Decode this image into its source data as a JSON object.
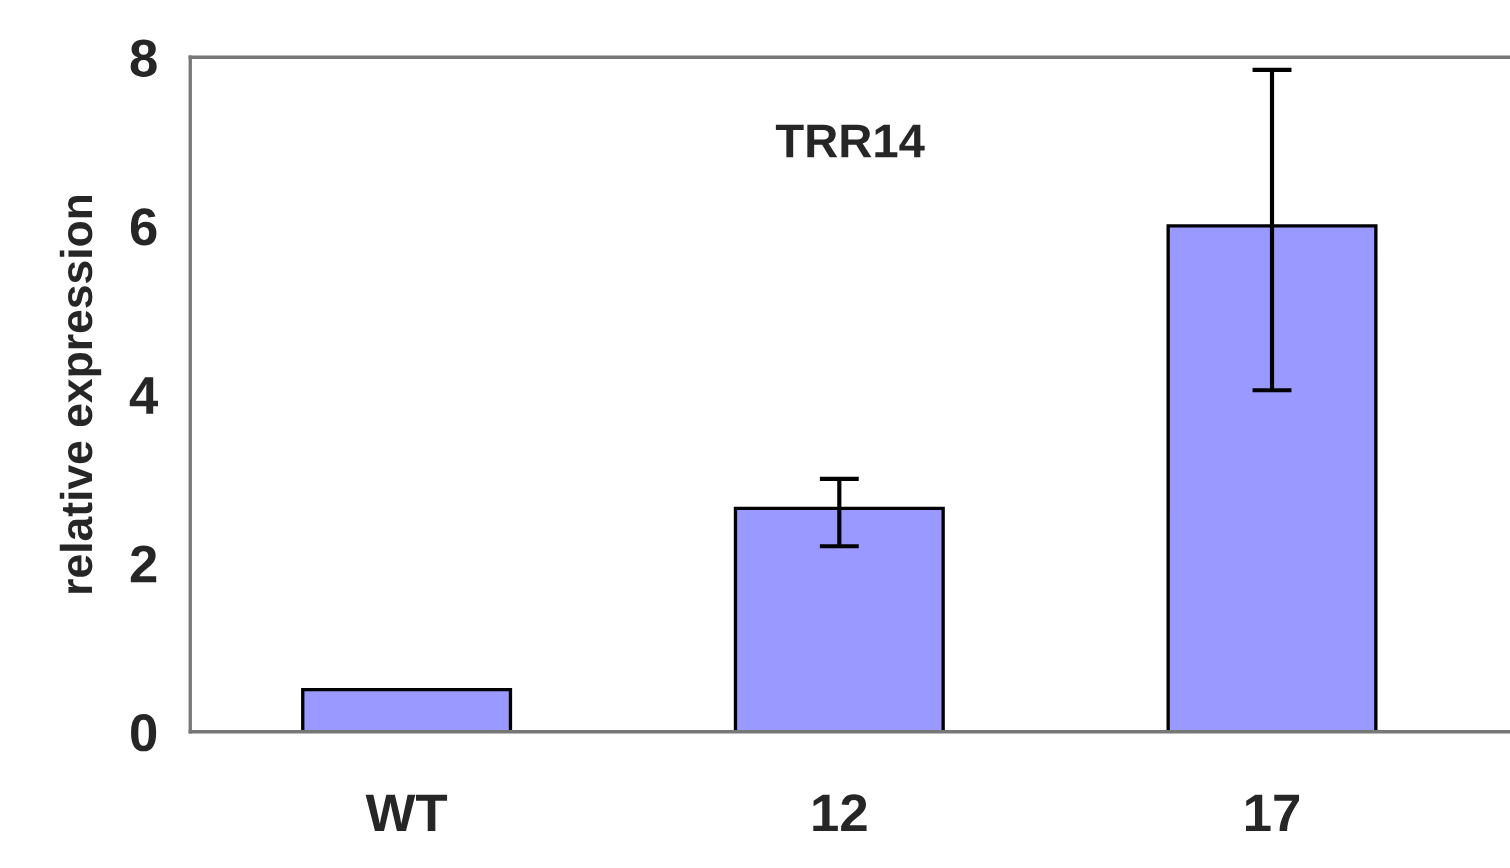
{
  "chart_data": {
    "type": "bar",
    "title": "TRR14",
    "ylabel": "relative expression",
    "categories": [
      "WT",
      "12",
      "17"
    ],
    "values": [
      0.5,
      2.65,
      6.0
    ],
    "color": "#9999ff",
    "errors": [
      null,
      [
        2.2,
        3.0
      ],
      [
        4.05,
        7.85
      ]
    ],
    "ylim": [
      0,
      8
    ],
    "yticks": [
      0,
      2,
      4,
      6,
      8
    ],
    "grid": false
  }
}
